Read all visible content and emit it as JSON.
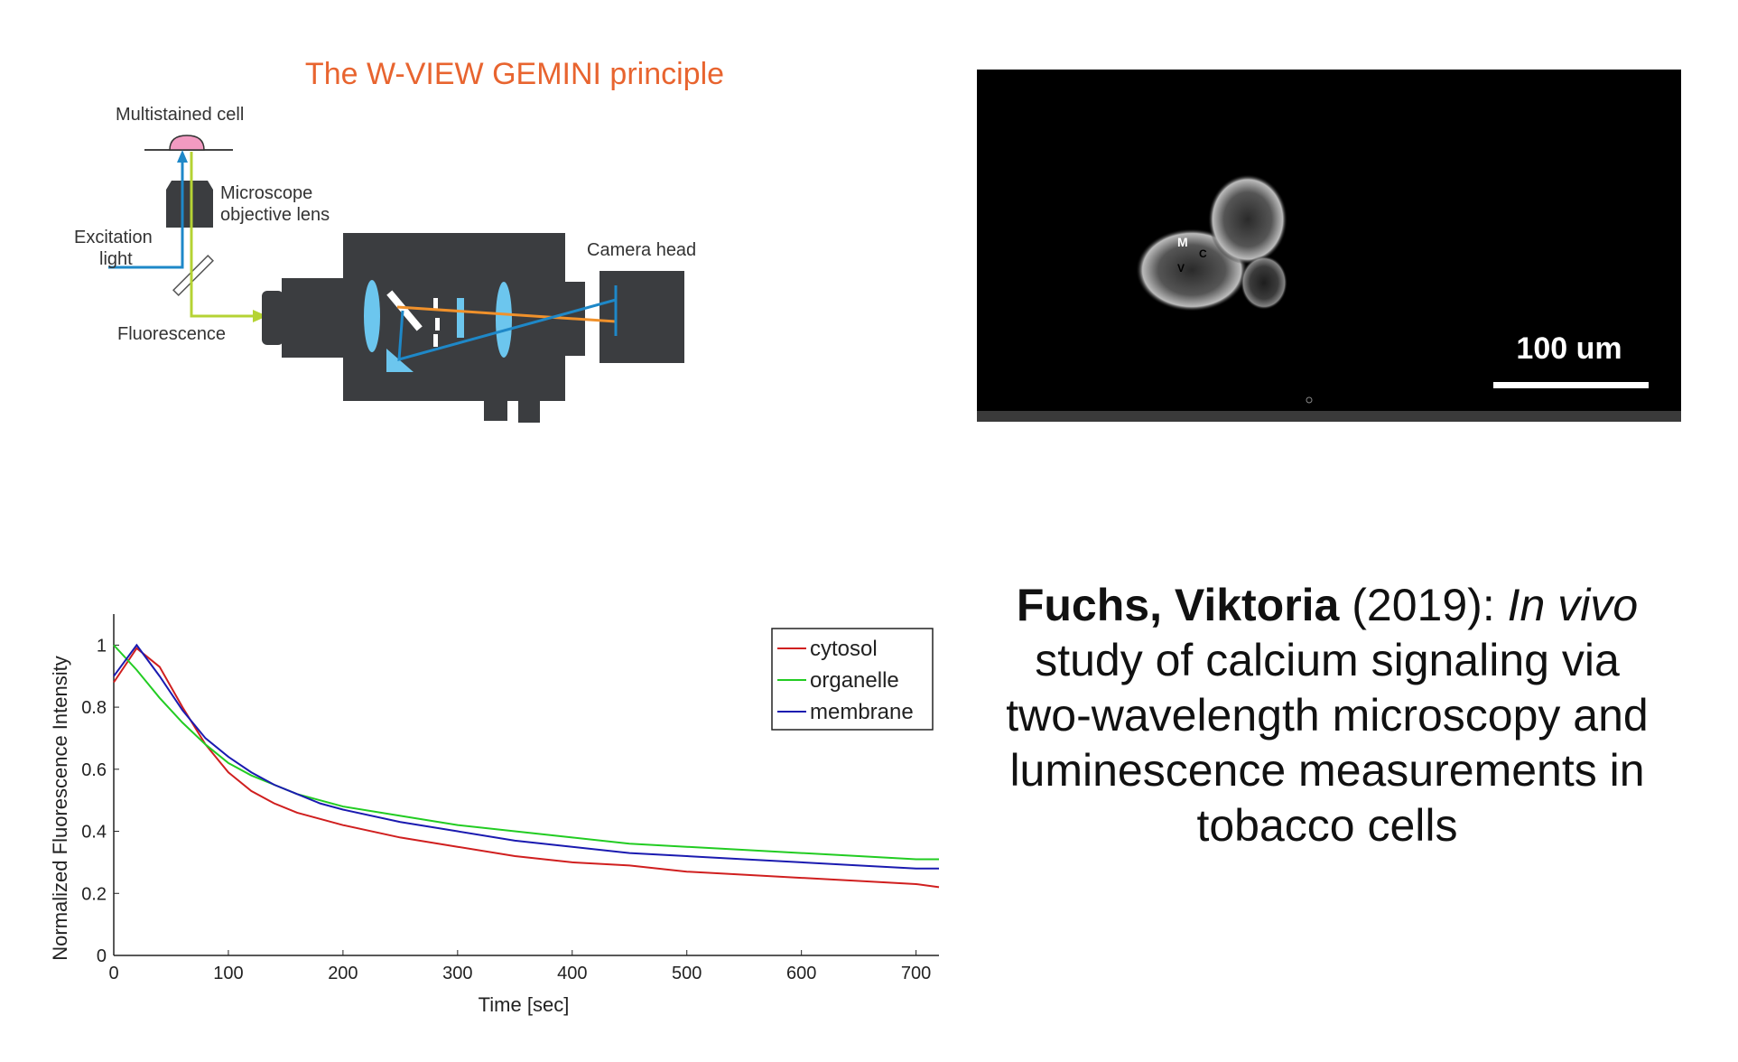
{
  "diagram": {
    "title": "The W-VIEW GEMINI principle",
    "labels": {
      "cell": "Multistained cell",
      "objective_1": "Microscope",
      "objective_2": "objective lens",
      "excitation_1": "Excitation",
      "excitation_2": "light",
      "fluorescence": "Fluorescence",
      "camera": "Camera head"
    },
    "colors": {
      "title": "#e8642f",
      "excitation": "#1e88c8",
      "fluorescence": "#b5d334",
      "orange_beam": "#f0912b",
      "body": "#3b3d40"
    }
  },
  "micrograph": {
    "labels": {
      "m": "M",
      "c": "C",
      "v": "V"
    },
    "scale_bar": "100 um"
  },
  "chart_data": {
    "type": "line",
    "xlabel": "Time [sec]",
    "ylabel": "Normalized Fluorescence Intensity",
    "xlim": [
      0,
      720
    ],
    "ylim": [
      0,
      1.1
    ],
    "xticks": [
      "0",
      "100",
      "200",
      "300",
      "400",
      "500",
      "600",
      "700"
    ],
    "yticks": [
      "0",
      "0.2",
      "0.4",
      "0.6",
      "0.8",
      "1"
    ],
    "legend_position": "top-right",
    "grid": false,
    "x": [
      0,
      20,
      40,
      60,
      80,
      100,
      120,
      140,
      160,
      180,
      200,
      250,
      300,
      350,
      400,
      450,
      500,
      550,
      600,
      650,
      700,
      720
    ],
    "series": [
      {
        "name": "cytosol",
        "color": "#d01f1f",
        "values": [
          0.88,
          0.99,
          0.93,
          0.8,
          0.68,
          0.59,
          0.53,
          0.49,
          0.46,
          0.44,
          0.42,
          0.38,
          0.35,
          0.32,
          0.3,
          0.29,
          0.27,
          0.26,
          0.25,
          0.24,
          0.23,
          0.22
        ]
      },
      {
        "name": "organelle",
        "color": "#22cc22",
        "values": [
          1.0,
          0.92,
          0.83,
          0.75,
          0.68,
          0.62,
          0.58,
          0.55,
          0.52,
          0.5,
          0.48,
          0.45,
          0.42,
          0.4,
          0.38,
          0.36,
          0.35,
          0.34,
          0.33,
          0.32,
          0.31,
          0.31
        ]
      },
      {
        "name": "membrane",
        "color": "#1a1ab0",
        "values": [
          0.9,
          1.0,
          0.9,
          0.79,
          0.7,
          0.64,
          0.59,
          0.55,
          0.52,
          0.49,
          0.47,
          0.43,
          0.4,
          0.37,
          0.35,
          0.33,
          0.32,
          0.31,
          0.3,
          0.29,
          0.28,
          0.28
        ]
      }
    ]
  },
  "citation": {
    "author": "Fuchs, Viktoria",
    "year": "(2019): ",
    "title_italic_1": "In",
    "title_italic_2": "vivo",
    "title_rest": " study of calcium signaling via two-wavelength microscopy and luminescence measurements in tobacco cells"
  }
}
